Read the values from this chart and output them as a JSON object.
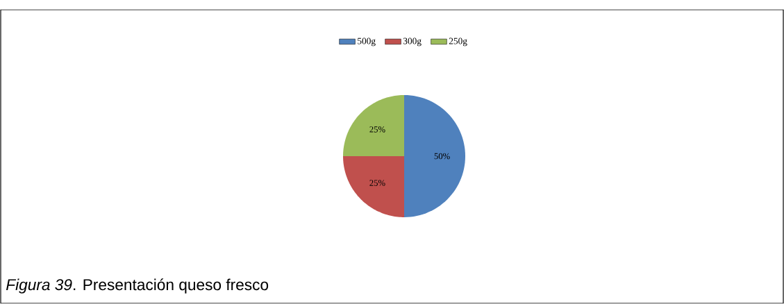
{
  "chart_data": {
    "type": "pie",
    "categories": [
      "500g",
      "300g",
      "250g"
    ],
    "values": [
      50,
      25,
      25
    ],
    "colors": [
      "#4f81bd",
      "#c0504d",
      "#9bbb59"
    ],
    "value_labels": [
      "50%",
      "25%",
      "25%"
    ],
    "legend": "top",
    "annotations": [
      "*Figura 39*. Presentación queso fresco"
    ]
  }
}
